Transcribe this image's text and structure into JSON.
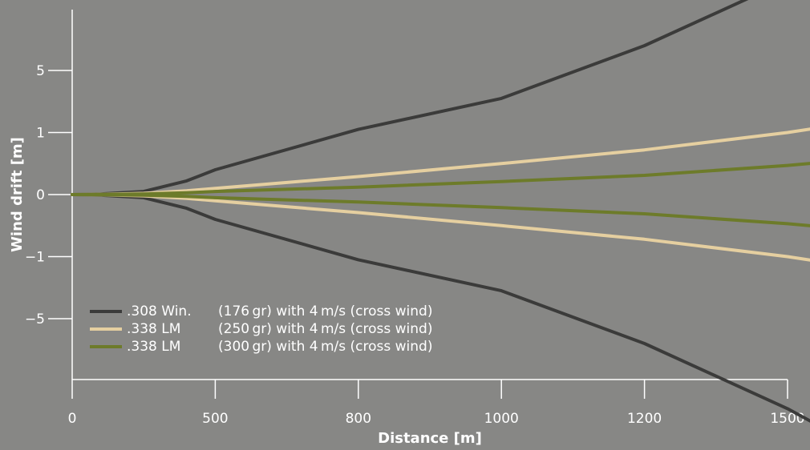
{
  "chart_data": {
    "type": "line",
    "xlabel": "Distance [m]",
    "ylabel": "Wind drift [m]",
    "x_ticks": [
      "0",
      "500",
      "800",
      "1000",
      "1200",
      "1500"
    ],
    "y_ticks": [
      "5",
      "1",
      "0",
      "−1",
      "−5"
    ],
    "legend_position": "bottom-left",
    "grid": false,
    "colors": {
      "background": "#878785",
      "axis": "#ffffff",
      "series_308": "#3b3b3a",
      "series_338_250": "#e5cfa0",
      "series_338_300": "#6d7b2a"
    },
    "series": [
      {
        "name": ".308 Win.",
        "detail": "(176 gr) with 4 m/s (cross wind)",
        "color": "#3b3b3a",
        "x_tick_position": [
          0,
          0.2,
          0.5,
          0.8,
          1,
          2,
          3,
          4,
          5,
          5.2,
          5.58
        ],
        "upper_y_tick_position": [
          0,
          0.01,
          0.05,
          0.22,
          0.4,
          1.05,
          1.55,
          2.4,
          3.45,
          3.7,
          4.02
        ],
        "lower_y_tick_position": [
          0,
          -0.01,
          -0.05,
          -0.22,
          -0.4,
          -1.05,
          -1.55,
          -2.4,
          -3.45,
          -3.7,
          -4.02
        ]
      },
      {
        "name": ".338 LM",
        "detail": "(250 gr) with 4 m/s (cross wind)",
        "color": "#e5cfa0",
        "x_tick_position": [
          0,
          0.2,
          0.5,
          0.8,
          1,
          2,
          3,
          4,
          5,
          5.2,
          5.58
        ],
        "upper_y_tick_position": [
          0,
          0.005,
          0.02,
          0.06,
          0.1,
          0.29,
          0.5,
          0.72,
          1.0,
          1.07,
          1.24
        ],
        "lower_y_tick_position": [
          0,
          -0.005,
          -0.02,
          -0.06,
          -0.1,
          -0.29,
          -0.5,
          -0.72,
          -1.0,
          -1.07,
          -1.24
        ]
      },
      {
        "name": ".338 LM",
        "detail": "(300 gr) with 4 m/s (cross wind)",
        "color": "#6d7b2a",
        "x_tick_position": [
          0,
          0.2,
          0.5,
          0.8,
          1,
          2,
          3,
          4,
          5,
          5.2,
          5.58
        ],
        "upper_y_tick_position": [
          0,
          0.003,
          0.01,
          0.03,
          0.05,
          0.12,
          0.21,
          0.31,
          0.47,
          0.51,
          0.6
        ],
        "lower_y_tick_position": [
          0,
          -0.003,
          -0.01,
          -0.03,
          -0.05,
          -0.12,
          -0.21,
          -0.31,
          -0.47,
          -0.51,
          -0.6
        ]
      }
    ]
  }
}
